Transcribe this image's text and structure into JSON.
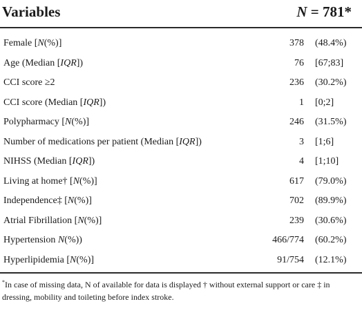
{
  "header": {
    "variables_label": "Variables",
    "n_symbol": "N",
    "n_value": " = 781*"
  },
  "rows": [
    {
      "var_pre": "Female [",
      "var_ital": "N",
      "var_post": "(%)]",
      "value": "378",
      "pct": "(48.4%)"
    },
    {
      "var_pre": "Age (Median [",
      "var_ital": "IQR",
      "var_post": "])",
      "value": "76",
      "pct": "[67;83]"
    },
    {
      "var_pre": "CCI score ≥2",
      "var_ital": "",
      "var_post": "",
      "value": "236",
      "pct": "(30.2%)"
    },
    {
      "var_pre": "CCI score (Median [",
      "var_ital": "IQR",
      "var_post": "])",
      "value": "1",
      "pct": "[0;2]"
    },
    {
      "var_pre": "Polypharmacy [",
      "var_ital": "N",
      "var_post": "(%)]",
      "value": "246",
      "pct": "(31.5%)"
    },
    {
      "var_pre": "Number of medications per patient (Median [",
      "var_ital": "IQR",
      "var_post": "])",
      "value": "3",
      "pct": "[1;6]"
    },
    {
      "var_pre": "NIHSS (Median [",
      "var_ital": "IQR",
      "var_post": "])",
      "value": "4",
      "pct": "[1;10]"
    },
    {
      "var_pre": "Living at home† [",
      "var_ital": "N",
      "var_post": "(%)]",
      "value": "617",
      "pct": "(79.0%)"
    },
    {
      "var_pre": "Independence‡ [",
      "var_ital": "N",
      "var_post": "(%)]",
      "value": "702",
      "pct": "(89.9%)"
    },
    {
      "var_pre": "Atrial Fibrillation [",
      "var_ital": "N",
      "var_post": "(%)]",
      "value": "239",
      "pct": "(30.6%)"
    },
    {
      "var_pre": "Hypertension ",
      "var_ital": "N",
      "var_post": "(%))",
      "value": "466/774",
      "pct": "(60.2%)"
    },
    {
      "var_pre": "Hyperlipidemia [",
      "var_ital": "N",
      "var_post": "(%)]",
      "value": "91/754",
      "pct": "(12.1%)"
    }
  ],
  "footnote": {
    "marker": "*",
    "text": "In case of missing data, N of available for data is displayed † without external support or care ‡ in dressing, mobility and toileting before index stroke."
  }
}
